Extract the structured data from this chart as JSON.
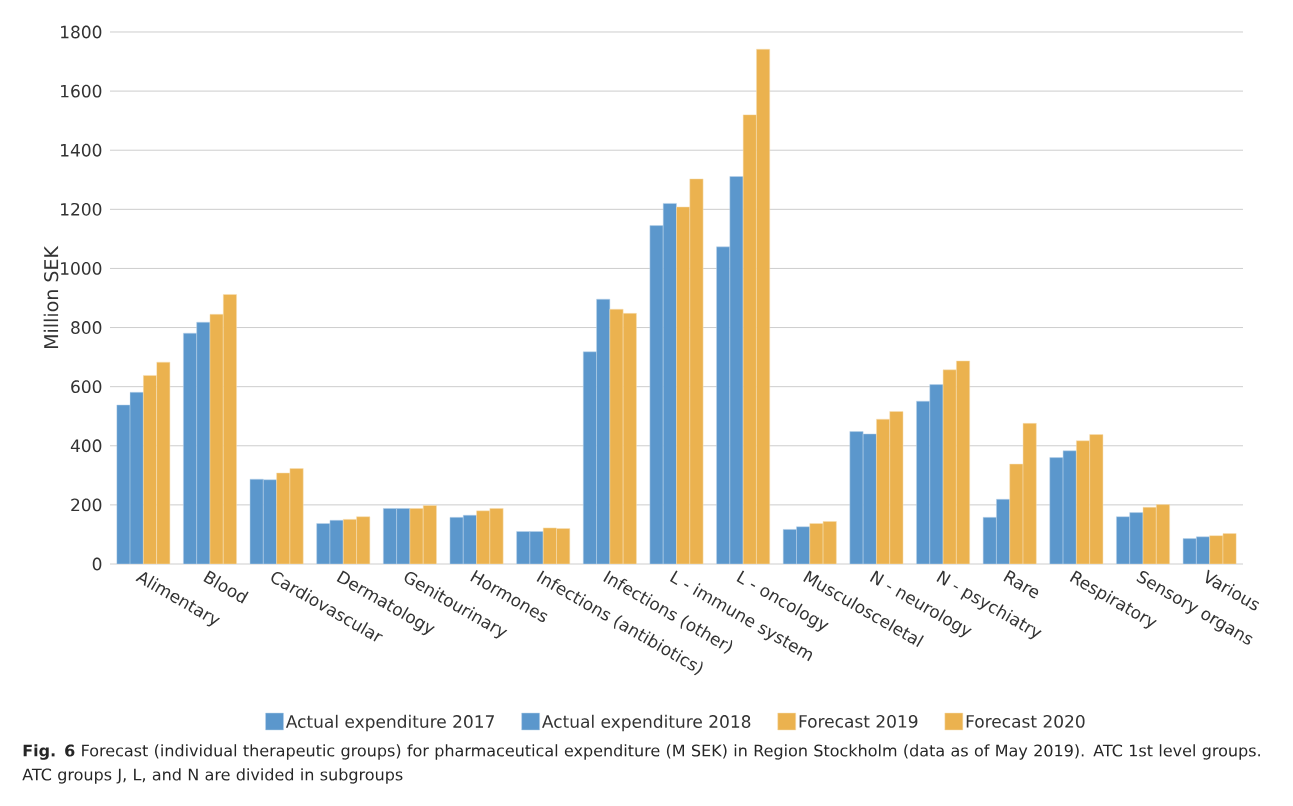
{
  "chart_data": {
    "type": "bar",
    "ylabel": "Million SEK",
    "categories": [
      "Alimentary",
      "Blood",
      "Cardiovascular",
      "Dermatology",
      "Genitourinary",
      "Hormones",
      "Infections (antibiotics)",
      "Infections (other)",
      "L - immune system",
      "L - oncology",
      "Musculosceletal",
      "N - neurology",
      "N - psychiatry",
      "Rare",
      "Respiratory",
      "Sensory organs",
      "Various"
    ],
    "series": [
      {
        "name": "Actual expenditure 2017",
        "color": "#5b97cc",
        "values": [
          538,
          781,
          287,
          137,
          188,
          158,
          110,
          718,
          1145,
          1073,
          117,
          448,
          551,
          158,
          360,
          160,
          86
        ]
      },
      {
        "name": "Actual expenditure 2018",
        "color": "#5b97cc",
        "values": [
          581,
          818,
          285,
          148,
          188,
          165,
          110,
          896,
          1220,
          1311,
          126,
          440,
          607,
          219,
          383,
          174,
          92
        ]
      },
      {
        "name": "Forecast 2019",
        "color": "#ebb24f",
        "values": [
          638,
          845,
          308,
          151,
          188,
          180,
          122,
          862,
          1208,
          1520,
          137,
          490,
          657,
          338,
          417,
          192,
          96
        ]
      },
      {
        "name": "Forecast 2020",
        "color": "#ebb24f",
        "values": [
          683,
          912,
          323,
          160,
          198,
          188,
          120,
          848,
          1303,
          1742,
          144,
          516,
          687,
          476,
          438,
          201,
          103
        ]
      }
    ],
    "ylim": [
      0,
      1800
    ],
    "yticks": [
      0,
      200,
      400,
      600,
      800,
      1000,
      1200,
      1400,
      1600,
      1800
    ],
    "grid": "y",
    "legend": "bottom",
    "annotations": [
      "**Fig. 6** Forecast (individual therapeutic groups) for pharmaceutical expenditure (M SEK) in Region Stockholm (data as of May 2019). ATC 1st level groups. ATC groups J, L, and N are divided in subgroups"
    ]
  }
}
